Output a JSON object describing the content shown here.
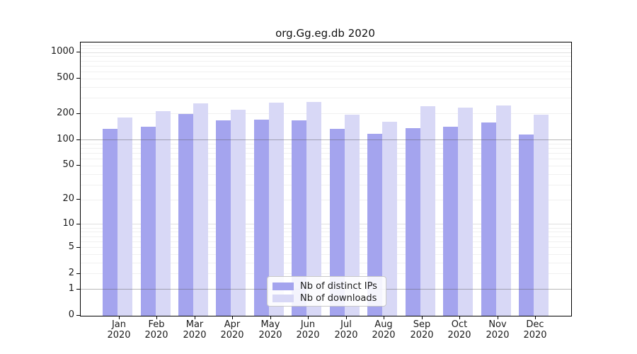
{
  "chart_data": {
    "type": "bar",
    "title": "org.Gg.eg.db 2020",
    "categories": [
      "Jan 2020",
      "Feb 2020",
      "Mar 2020",
      "Apr 2020",
      "May 2020",
      "Jun 2020",
      "Jul 2020",
      "Aug 2020",
      "Sep 2020",
      "Oct 2020",
      "Nov 2020",
      "Dec 2020"
    ],
    "x_tick_months": [
      "Jan",
      "Feb",
      "Mar",
      "Apr",
      "May",
      "Jun",
      "Jul",
      "Aug",
      "Sep",
      "Oct",
      "Nov",
      "Dec"
    ],
    "x_tick_year": "2020",
    "series": [
      {
        "name": "Nb of distinct IPs",
        "color": "#a4a4ee",
        "values": [
          135,
          143,
          200,
          167,
          172,
          168,
          134,
          117,
          137,
          142,
          158,
          115
        ]
      },
      {
        "name": "Nb of downloads",
        "color": "#d8d8f6",
        "values": [
          182,
          215,
          263,
          220,
          268,
          273,
          195,
          161,
          244,
          234,
          249,
          194
        ]
      }
    ],
    "y_axis": {
      "scale": "log1p",
      "ticks": [
        0,
        1,
        2,
        5,
        10,
        20,
        50,
        100,
        200,
        500,
        1000
      ],
      "ylim": [
        0,
        1300
      ]
    },
    "grid": true,
    "legend_position": "lower-center-inside"
  }
}
